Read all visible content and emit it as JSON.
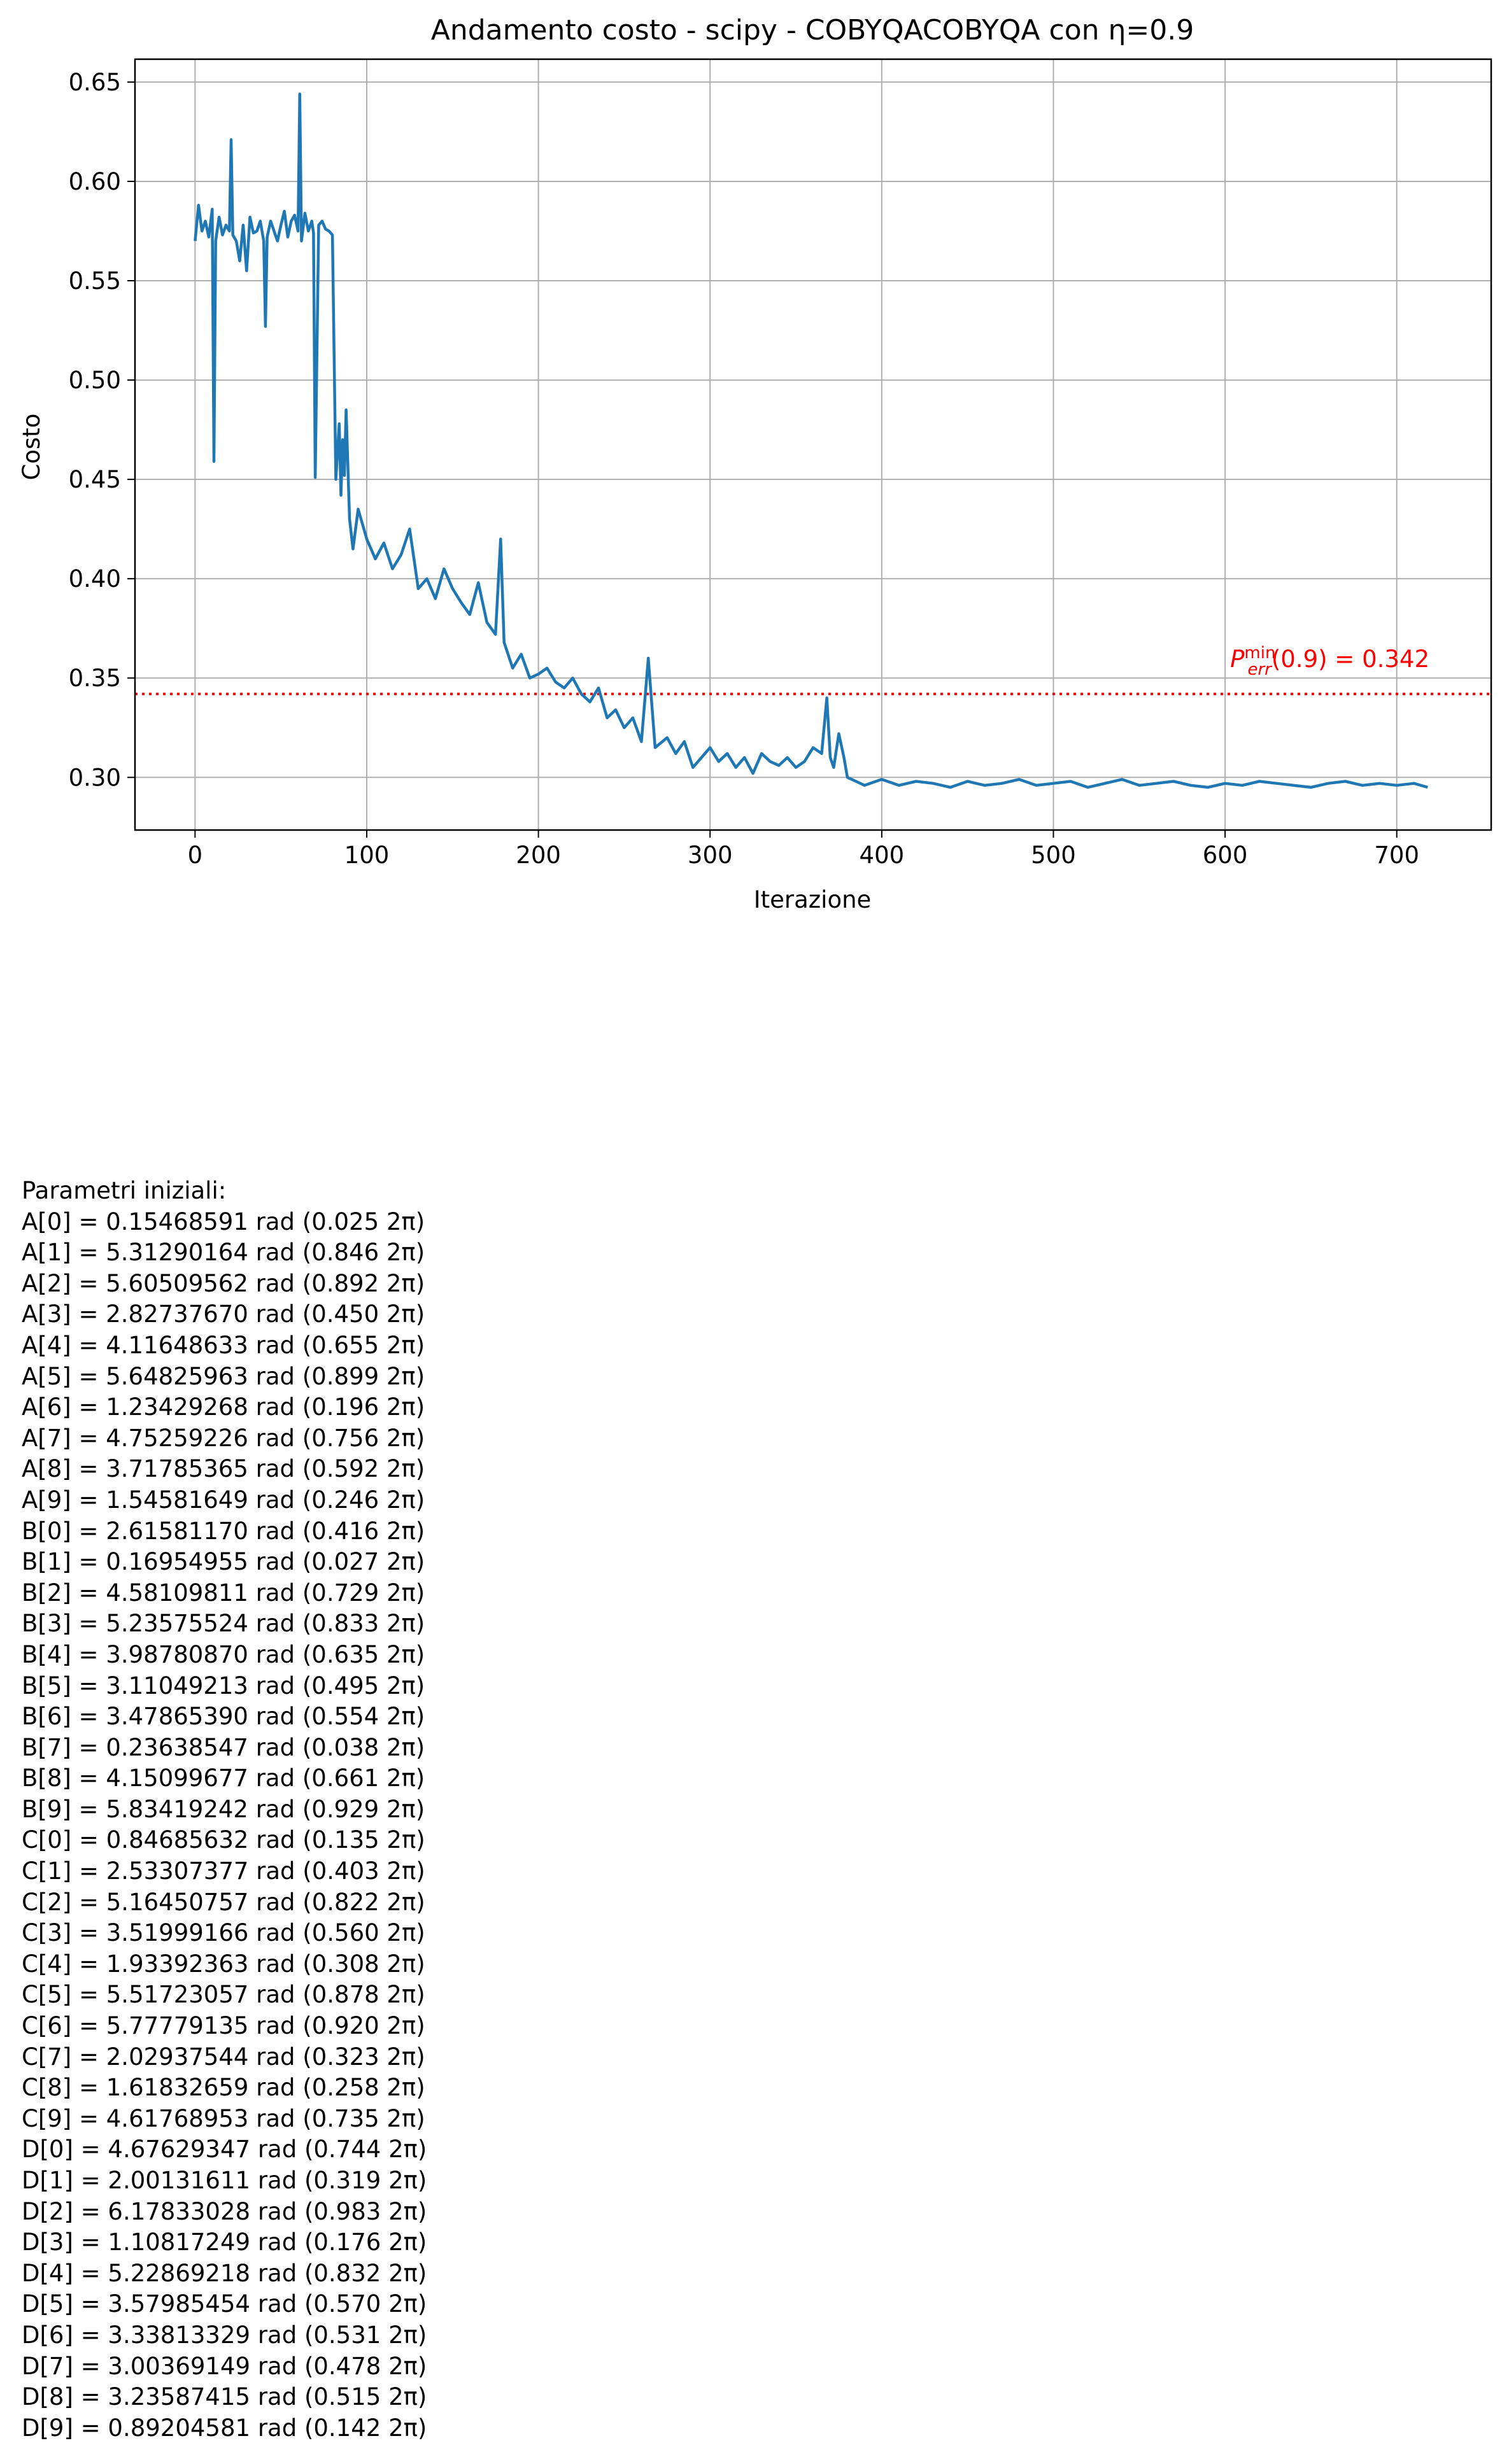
{
  "chart_data": {
    "type": "line",
    "title": "Andamento costo - scipy - COBYQACOBYQA con η=0.9",
    "xlabel": "Iterazione",
    "ylabel": "Costo",
    "xlim": [
      -35,
      755
    ],
    "ylim": [
      0.2735,
      0.6615
    ],
    "xticks": [
      0,
      100,
      200,
      300,
      400,
      500,
      600,
      700
    ],
    "yticks": [
      0.3,
      0.35,
      0.4,
      0.45,
      0.5,
      0.55,
      0.6,
      0.65
    ],
    "ytick_labels": [
      "0.30",
      "0.35",
      "0.40",
      "0.45",
      "0.50",
      "0.55",
      "0.60",
      "0.65"
    ],
    "xtick_labels": [
      "0",
      "100",
      "200",
      "300",
      "400",
      "500",
      "600",
      "700"
    ],
    "grid": true,
    "line_color": "#1f77b4",
    "reference_line": {
      "y": 0.342,
      "color": "#ff0000",
      "style": "dotted",
      "label_prefix": "P",
      "label_sup": "min",
      "label_sub": "err",
      "label_suffix": "(0.9) = 0.342"
    },
    "series": [
      {
        "x": [
          0,
          2,
          4,
          6,
          8,
          10,
          11,
          12,
          14,
          16,
          18,
          20,
          21,
          22,
          24,
          26,
          28,
          30,
          32,
          34,
          36,
          38,
          40,
          41,
          42,
          44,
          46,
          48,
          50,
          52,
          54,
          56,
          58,
          60,
          61,
          62,
          64,
          66,
          68,
          69,
          70,
          72,
          74,
          76,
          78,
          80,
          82,
          84,
          85,
          86,
          87,
          88,
          90,
          92,
          95,
          100,
          105,
          110,
          115,
          120,
          125,
          130,
          135,
          140,
          145,
          150,
          155,
          160,
          165,
          170,
          175,
          178,
          180,
          185,
          190,
          195,
          200,
          205,
          210,
          215,
          220,
          225,
          230,
          235,
          240,
          245,
          250,
          255,
          260,
          264,
          268,
          275,
          280,
          285,
          290,
          295,
          300,
          305,
          310,
          315,
          320,
          325,
          330,
          335,
          340,
          345,
          350,
          355,
          360,
          365,
          368,
          370,
          372,
          375,
          378,
          380,
          385,
          390,
          400,
          410,
          420,
          430,
          440,
          450,
          460,
          470,
          480,
          490,
          500,
          510,
          520,
          530,
          540,
          550,
          560,
          570,
          580,
          590,
          600,
          610,
          620,
          630,
          640,
          650,
          660,
          670,
          680,
          690,
          700,
          710,
          718
        ],
        "y": [
          0.57,
          0.588,
          0.575,
          0.58,
          0.572,
          0.586,
          0.459,
          0.57,
          0.582,
          0.573,
          0.578,
          0.575,
          0.621,
          0.573,
          0.57,
          0.56,
          0.578,
          0.555,
          0.582,
          0.574,
          0.575,
          0.58,
          0.57,
          0.527,
          0.572,
          0.58,
          0.575,
          0.57,
          0.578,
          0.585,
          0.572,
          0.58,
          0.583,
          0.575,
          0.644,
          0.57,
          0.584,
          0.575,
          0.58,
          0.574,
          0.451,
          0.578,
          0.58,
          0.576,
          0.575,
          0.573,
          0.45,
          0.478,
          0.442,
          0.47,
          0.452,
          0.485,
          0.43,
          0.415,
          0.435,
          0.42,
          0.41,
          0.418,
          0.405,
          0.412,
          0.425,
          0.395,
          0.4,
          0.39,
          0.405,
          0.395,
          0.388,
          0.382,
          0.398,
          0.378,
          0.372,
          0.42,
          0.368,
          0.355,
          0.362,
          0.35,
          0.352,
          0.355,
          0.348,
          0.345,
          0.35,
          0.342,
          0.338,
          0.345,
          0.33,
          0.334,
          0.325,
          0.33,
          0.318,
          0.36,
          0.315,
          0.32,
          0.312,
          0.318,
          0.305,
          0.31,
          0.315,
          0.308,
          0.312,
          0.305,
          0.31,
          0.302,
          0.312,
          0.308,
          0.306,
          0.31,
          0.305,
          0.308,
          0.315,
          0.312,
          0.34,
          0.31,
          0.305,
          0.322,
          0.31,
          0.3,
          0.298,
          0.296,
          0.299,
          0.296,
          0.298,
          0.297,
          0.295,
          0.298,
          0.296,
          0.297,
          0.299,
          0.296,
          0.297,
          0.298,
          0.295,
          0.297,
          0.299,
          0.296,
          0.297,
          0.298,
          0.296,
          0.295,
          0.297,
          0.296,
          0.298,
          0.297,
          0.296,
          0.295,
          0.297,
          0.298,
          0.296,
          0.297,
          0.296,
          0.297,
          0.295
        ]
      }
    ]
  },
  "params": {
    "heading": "Parametri iniziali:",
    "lines": [
      "A[0] = 0.15468591 rad (0.025 2π)",
      "A[1] = 5.31290164 rad (0.846 2π)",
      "A[2] = 5.60509562 rad (0.892 2π)",
      "A[3] = 2.82737670 rad (0.450 2π)",
      "A[4] = 4.11648633 rad (0.655 2π)",
      "A[5] = 5.64825963 rad (0.899 2π)",
      "A[6] = 1.23429268 rad (0.196 2π)",
      "A[7] = 4.75259226 rad (0.756 2π)",
      "A[8] = 3.71785365 rad (0.592 2π)",
      "A[9] = 1.54581649 rad (0.246 2π)",
      "B[0] = 2.61581170 rad (0.416 2π)",
      "B[1] = 0.16954955 rad (0.027 2π)",
      "B[2] = 4.58109811 rad (0.729 2π)",
      "B[3] = 5.23575524 rad (0.833 2π)",
      "B[4] = 3.98780870 rad (0.635 2π)",
      "B[5] = 3.11049213 rad (0.495 2π)",
      "B[6] = 3.47865390 rad (0.554 2π)",
      "B[7] = 0.23638547 rad (0.038 2π)",
      "B[8] = 4.15099677 rad (0.661 2π)",
      "B[9] = 5.83419242 rad (0.929 2π)",
      "C[0] = 0.84685632 rad (0.135 2π)",
      "C[1] = 2.53307377 rad (0.403 2π)",
      "C[2] = 5.16450757 rad (0.822 2π)",
      "C[3] = 3.51999166 rad (0.560 2π)",
      "C[4] = 1.93392363 rad (0.308 2π)",
      "C[5] = 5.51723057 rad (0.878 2π)",
      "C[6] = 5.77779135 rad (0.920 2π)",
      "C[7] = 2.02937544 rad (0.323 2π)",
      "C[8] = 1.61832659 rad (0.258 2π)",
      "C[9] = 4.61768953 rad (0.735 2π)",
      "D[0] = 4.67629347 rad (0.744 2π)",
      "D[1] = 2.00131611 rad (0.319 2π)",
      "D[2] = 6.17833028 rad (0.983 2π)",
      "D[3] = 1.10817249 rad (0.176 2π)",
      "D[4] = 5.22869218 rad (0.832 2π)",
      "D[5] = 3.57985454 rad (0.570 2π)",
      "D[6] = 3.33813329 rad (0.531 2π)",
      "D[7] = 3.00369149 rad (0.478 2π)",
      "D[8] = 3.23587415 rad (0.515 2π)",
      "D[9] = 0.89204581 rad (0.142 2π)"
    ]
  }
}
